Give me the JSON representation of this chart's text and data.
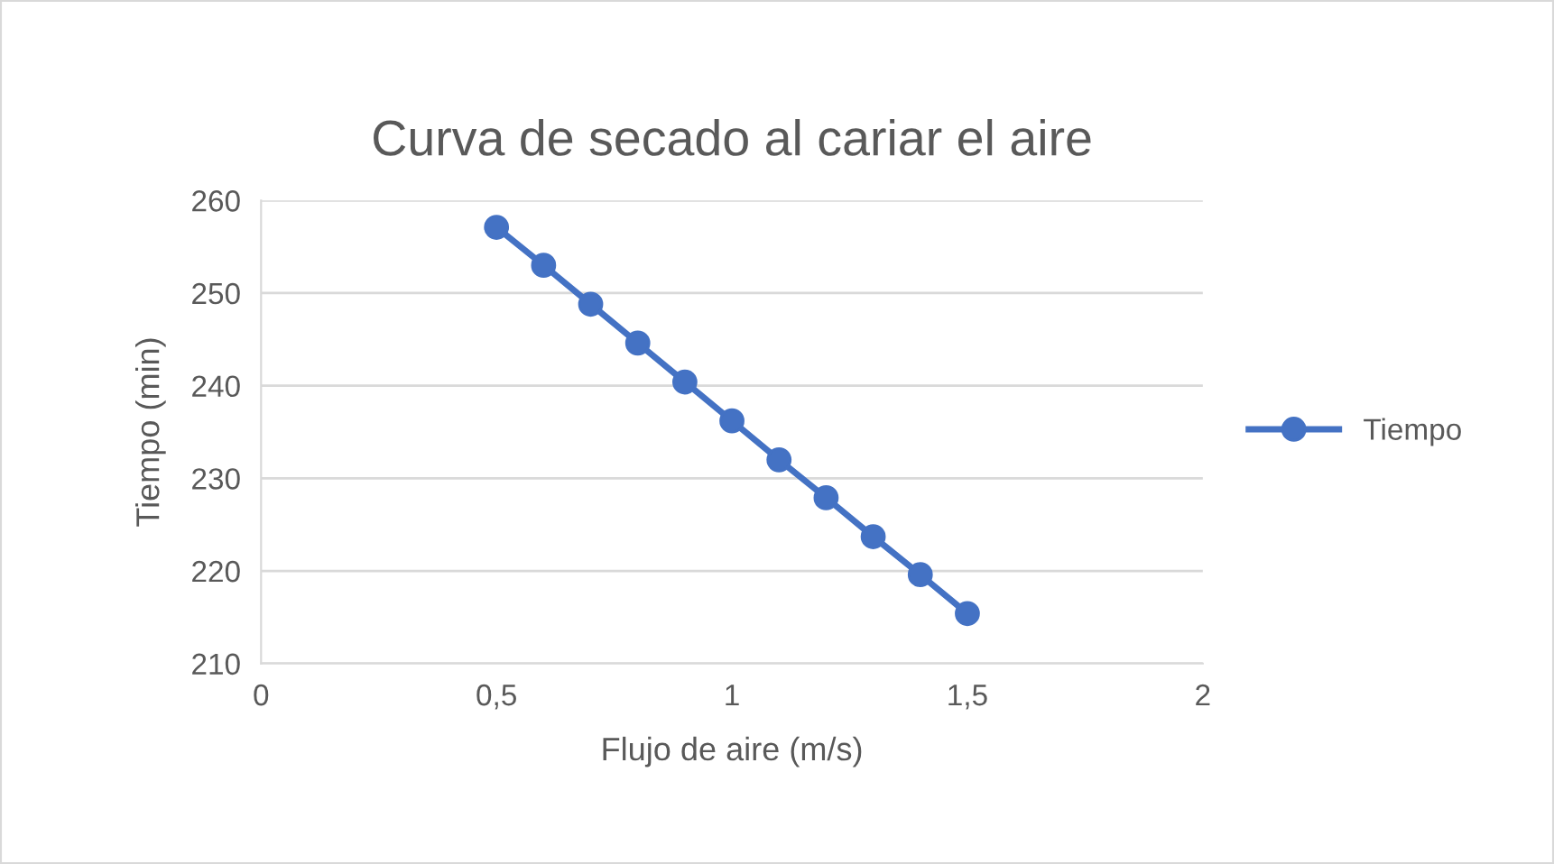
{
  "chart_data": {
    "type": "line",
    "title": "Curva de secado al cariar el aire",
    "xlabel": "Flujo de aire (m/s)",
    "ylabel": "Tiempo (min)",
    "x": [
      0.5,
      0.6,
      0.7,
      0.8,
      0.9,
      1.0,
      1.1,
      1.2,
      1.3,
      1.4,
      1.5
    ],
    "series": [
      {
        "name": "Tiempo",
        "color": "#4472c4",
        "values": [
          257.1,
          253.0,
          248.8,
          244.6,
          240.4,
          236.2,
          232.0,
          227.9,
          223.7,
          219.6,
          215.4
        ]
      }
    ],
    "xlim": [
      0,
      2
    ],
    "xticks": [
      0,
      {
        "value": 0.5,
        "label": "0,5"
      },
      1,
      {
        "value": 1.5,
        "label": "1,5"
      },
      2
    ],
    "ylim": [
      210,
      260
    ],
    "yticks": [
      210,
      220,
      230,
      240,
      250,
      260
    ],
    "grid": "y",
    "legend": "right",
    "marker": "circle",
    "line_style": "solid"
  }
}
